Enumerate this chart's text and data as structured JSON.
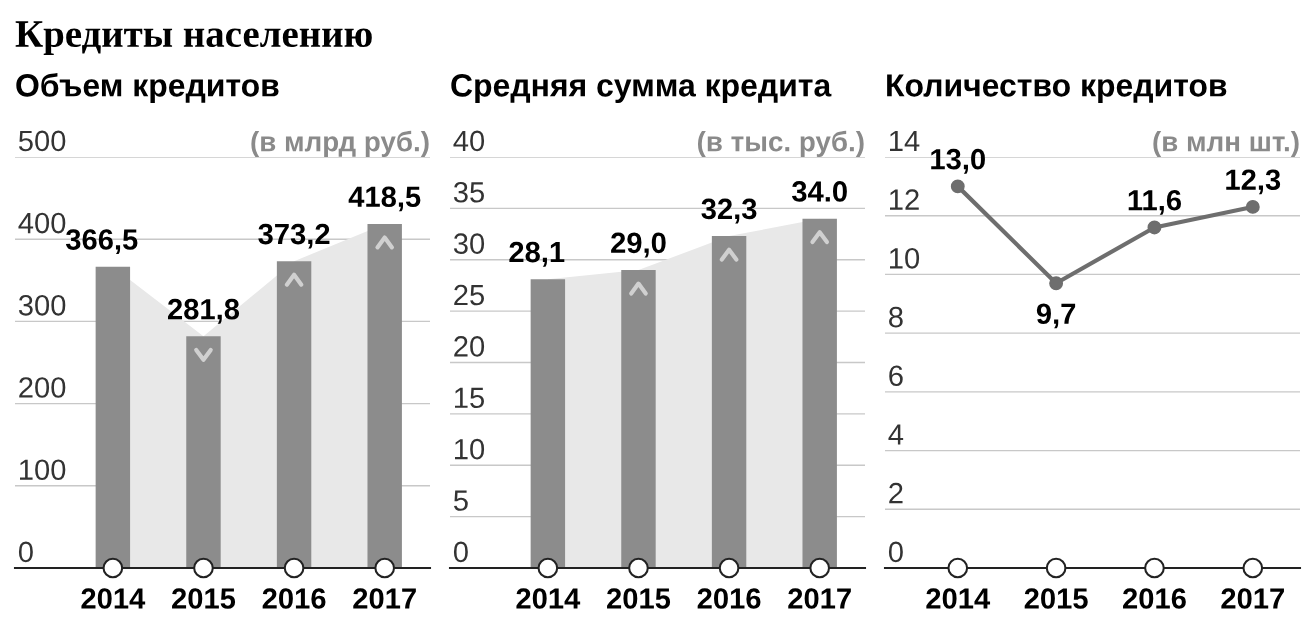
{
  "chart_data": [
    {
      "type": "bar",
      "title": "Кредиты населению",
      "subtitle": "Объем кредитов",
      "ylabel": "(в млрд руб.)",
      "categories": [
        "2014",
        "2015",
        "2016",
        "2017"
      ],
      "series": [
        {
          "type": "area",
          "color": "#e8e8e8",
          "values": [
            366.5,
            281.8,
            373.2,
            418.5
          ]
        },
        {
          "type": "bar",
          "color": "#8c8c8c",
          "values": [
            366.5,
            281.8,
            373.2,
            418.5
          ],
          "value_labels": [
            "366,5",
            "281,8",
            "373,2",
            "418,5"
          ]
        }
      ],
      "ylim": [
        0,
        500
      ],
      "yticks": [
        0,
        100,
        200,
        300,
        400,
        500
      ],
      "grid": "y"
    },
    {
      "type": "bar",
      "subtitle": "Средняя сумма кредита",
      "ylabel": "(в тыс. руб.)",
      "categories": [
        "2014",
        "2015",
        "2016",
        "2017"
      ],
      "series": [
        {
          "type": "area",
          "color": "#e8e8e8",
          "values": [
            28.1,
            29.0,
            32.3,
            34.0
          ]
        },
        {
          "type": "bar",
          "color": "#8c8c8c",
          "values": [
            28.1,
            29.0,
            32.3,
            34.0
          ],
          "value_labels": [
            "28,1",
            "29,0",
            "32,3",
            "34.0"
          ]
        }
      ],
      "ylim": [
        0,
        40
      ],
      "yticks": [
        0,
        5,
        10,
        15,
        20,
        25,
        30,
        35,
        40
      ],
      "grid": "y"
    },
    {
      "type": "line",
      "subtitle": "Количество кредитов",
      "ylabel": "(в млн шт.)",
      "categories": [
        "2014",
        "2015",
        "2016",
        "2017"
      ],
      "series": [
        {
          "type": "line",
          "color": "#6e6e6e",
          "values": [
            13.0,
            9.7,
            11.6,
            12.3
          ],
          "value_labels": [
            "13,0",
            "9,7",
            "11,6",
            "12,3"
          ]
        }
      ],
      "ylim": [
        0,
        14
      ],
      "yticks": [
        0,
        2,
        4,
        6,
        8,
        10,
        12,
        14
      ],
      "grid": "y",
      "marker": "circle",
      "line_style": "solid"
    }
  ]
}
